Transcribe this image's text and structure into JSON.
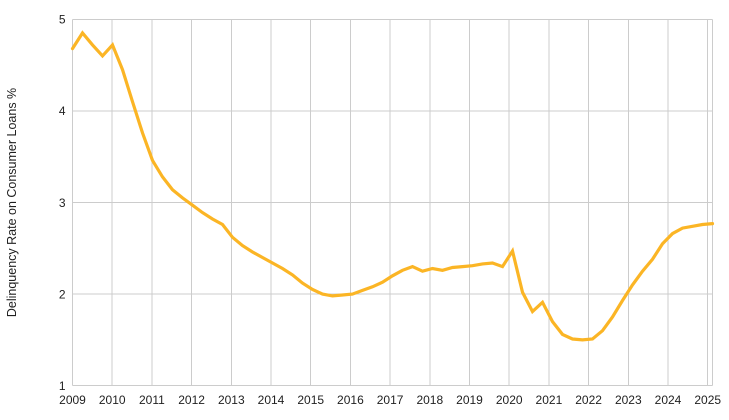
{
  "chart_data": {
    "type": "line",
    "title": "",
    "xlabel": "",
    "ylabel": "Delinquency Rate on Consumer Loans %",
    "x_start": "2009Q1",
    "x_end": "2025Q1",
    "frequency": "quarterly",
    "x_tick_labels": [
      "2009",
      "2010",
      "2011",
      "2012",
      "2013",
      "2014",
      "2015",
      "2016",
      "2017",
      "2018",
      "2019",
      "2020",
      "2021",
      "2022",
      "2023",
      "2024",
      "2025"
    ],
    "y_tick_labels": [
      "1",
      "2",
      "3",
      "4",
      "5"
    ],
    "ylim": [
      1,
      5
    ],
    "grid": true,
    "legend_position": "none",
    "line_color": "#FBB525",
    "grid_color": "#cccccc",
    "label_color": "#1f1f1f",
    "background_color": "#ffffff",
    "series": [
      {
        "name": "Delinquency Rate on Consumer Loans %",
        "values": [
          4.68,
          4.85,
          4.72,
          4.6,
          4.72,
          4.45,
          4.1,
          3.76,
          3.46,
          3.28,
          3.14,
          3.05,
          2.97,
          2.89,
          2.82,
          2.76,
          2.62,
          2.53,
          2.46,
          2.4,
          2.34,
          2.28,
          2.21,
          2.12,
          2.05,
          2.0,
          1.98,
          1.99,
          2.0,
          2.04,
          2.08,
          2.13,
          2.2,
          2.26,
          2.3,
          2.25,
          2.28,
          2.26,
          2.29,
          2.3,
          2.31,
          2.33,
          2.34,
          2.3,
          2.47,
          2.02,
          1.81,
          1.91,
          1.7,
          1.56,
          1.51,
          1.5,
          1.51,
          1.6,
          1.75,
          1.93,
          2.1,
          2.25,
          2.38,
          2.55,
          2.66,
          2.72,
          2.74,
          2.76,
          2.77
        ]
      }
    ]
  }
}
